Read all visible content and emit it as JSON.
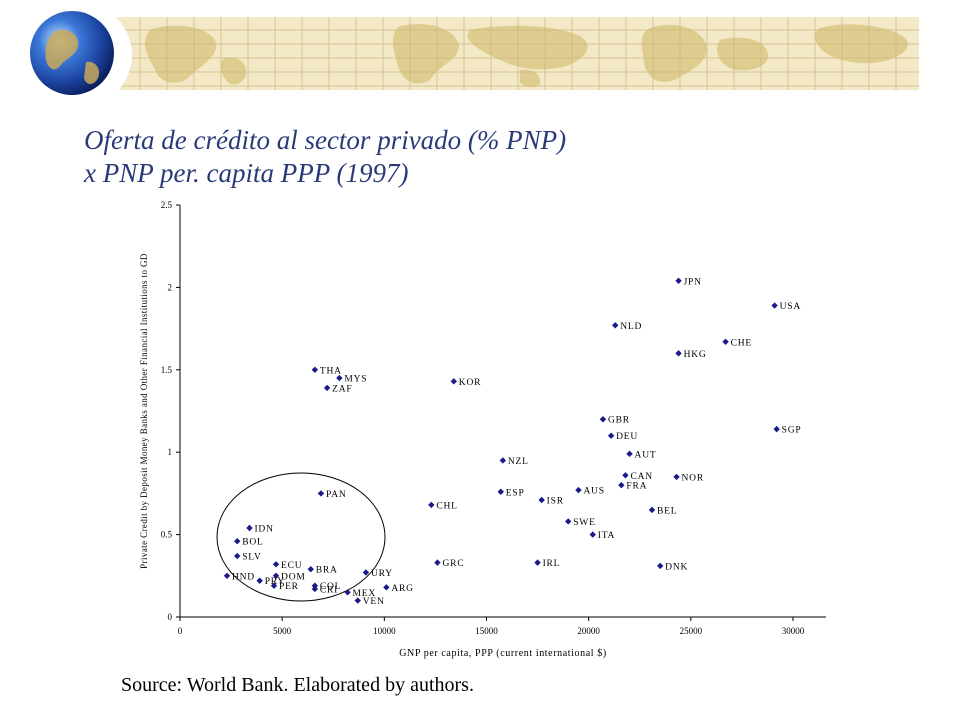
{
  "slide": {
    "title_line1": "Oferta de crédito al sector privado (% PNP)",
    "title_line2": "x PNP per. capita PPP (1997)",
    "source": "Source: World Bank. Elaborated by authors."
  },
  "colors": {
    "title": "#2a3a78",
    "marker": "#1a1a8a",
    "banner_bg": "#f3e9c6",
    "map_land": "#ddc98a",
    "globe": "#1f4fb8"
  },
  "chart_data": {
    "type": "scatter",
    "xlabel": "GNP per capita, PPP (current international $)",
    "ylabel": "Private Credit by Deposit Money Banks and Other Financial Institutions to GD",
    "xlim": [
      0,
      32000
    ],
    "ylim": [
      0,
      2.5
    ],
    "xticks": [
      0,
      5000,
      10000,
      15000,
      20000,
      25000,
      30000
    ],
    "yticks": [
      0,
      0.5,
      1,
      1.5,
      2,
      2.5
    ],
    "xtick_labels": [
      "0",
      "5000",
      "10000",
      "15000",
      "20000",
      "25000",
      "30000"
    ],
    "ytick_labels": [
      "0",
      "0.5",
      "1",
      "1.5",
      "2",
      "2.5"
    ],
    "grid": false,
    "legend": "none",
    "annotation": "ellipse highlighting low-income economies",
    "points": [
      {
        "label": "JPN",
        "x": 24400,
        "y": 2.04
      },
      {
        "label": "USA",
        "x": 29100,
        "y": 1.89
      },
      {
        "label": "NLD",
        "x": 21300,
        "y": 1.77
      },
      {
        "label": "CHE",
        "x": 26700,
        "y": 1.67
      },
      {
        "label": "HKG",
        "x": 24400,
        "y": 1.6
      },
      {
        "label": "THA",
        "x": 6600,
        "y": 1.5
      },
      {
        "label": "MYS",
        "x": 7800,
        "y": 1.45
      },
      {
        "label": "ZAF",
        "x": 7200,
        "y": 1.39
      },
      {
        "label": "KOR",
        "x": 13400,
        "y": 1.43
      },
      {
        "label": "GBR",
        "x": 20700,
        "y": 1.2
      },
      {
        "label": "SGP",
        "x": 29200,
        "y": 1.14
      },
      {
        "label": "DEU",
        "x": 21100,
        "y": 1.1
      },
      {
        "label": "AUT",
        "x": 22000,
        "y": 0.99
      },
      {
        "label": "NZL",
        "x": 15800,
        "y": 0.95
      },
      {
        "label": "CAN",
        "x": 21800,
        "y": 0.86
      },
      {
        "label": "NOR",
        "x": 24300,
        "y": 0.85
      },
      {
        "label": "FRA",
        "x": 21600,
        "y": 0.8
      },
      {
        "label": "AUS",
        "x": 19500,
        "y": 0.77
      },
      {
        "label": "ESP",
        "x": 15700,
        "y": 0.76
      },
      {
        "label": "PAN",
        "x": 6900,
        "y": 0.75
      },
      {
        "label": "ISR",
        "x": 17700,
        "y": 0.71
      },
      {
        "label": "CHL",
        "x": 12300,
        "y": 0.68
      },
      {
        "label": "BEL",
        "x": 23100,
        "y": 0.65
      },
      {
        "label": "SWE",
        "x": 19000,
        "y": 0.58
      },
      {
        "label": "IDN",
        "x": 3400,
        "y": 0.54
      },
      {
        "label": "ITA",
        "x": 20200,
        "y": 0.5
      },
      {
        "label": "BOL",
        "x": 2800,
        "y": 0.46
      },
      {
        "label": "SLV",
        "x": 2800,
        "y": 0.37
      },
      {
        "label": "GRC",
        "x": 12600,
        "y": 0.33
      },
      {
        "label": "IRL",
        "x": 17500,
        "y": 0.33
      },
      {
        "label": "ECU",
        "x": 4700,
        "y": 0.32
      },
      {
        "label": "DNK",
        "x": 23500,
        "y": 0.31
      },
      {
        "label": "BRA",
        "x": 6400,
        "y": 0.29
      },
      {
        "label": "URY",
        "x": 9100,
        "y": 0.27
      },
      {
        "label": "HND",
        "x": 2300,
        "y": 0.25
      },
      {
        "label": "DOM",
        "x": 4700,
        "y": 0.25
      },
      {
        "label": "PRY",
        "x": 3900,
        "y": 0.22
      },
      {
        "label": "PER",
        "x": 4600,
        "y": 0.19
      },
      {
        "label": "COL",
        "x": 6600,
        "y": 0.19
      },
      {
        "label": "CRI",
        "x": 6600,
        "y": 0.17
      },
      {
        "label": "ARG",
        "x": 10100,
        "y": 0.18
      },
      {
        "label": "MEX",
        "x": 8200,
        "y": 0.15
      },
      {
        "label": "VEN",
        "x": 8700,
        "y": 0.1
      }
    ]
  }
}
